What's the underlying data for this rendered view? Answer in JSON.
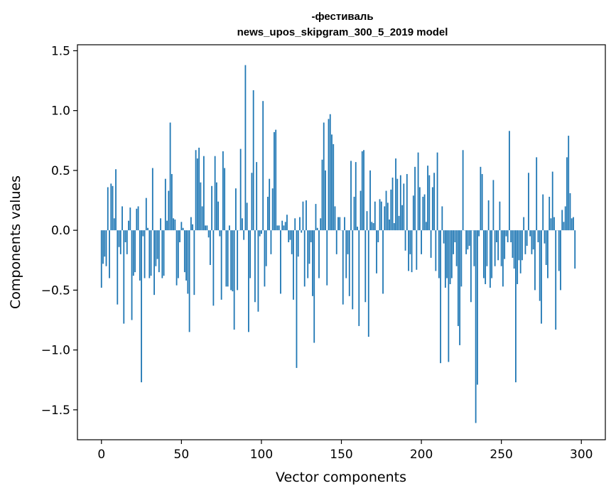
{
  "chart_data": {
    "type": "bar",
    "title_line1": "-фестиваль",
    "title_line2": "news_upos_skipgram_300_5_2019 model",
    "xlabel": "Vector components",
    "ylabel": "Components values",
    "xlim": [
      -15,
      315
    ],
    "ylim": [
      -1.75,
      1.55
    ],
    "xticks": [
      {
        "value": 0,
        "label": "0"
      },
      {
        "value": 50,
        "label": "50"
      },
      {
        "value": 100,
        "label": "100"
      },
      {
        "value": 150,
        "label": "150"
      },
      {
        "value": 200,
        "label": "200"
      },
      {
        "value": 250,
        "label": "250"
      },
      {
        "value": 300,
        "label": "300"
      }
    ],
    "yticks": [
      {
        "value": 1.5,
        "label": "1.5"
      },
      {
        "value": 1.0,
        "label": "1.0"
      },
      {
        "value": 0.5,
        "label": "0.5"
      },
      {
        "value": 0.0,
        "label": "0.0"
      },
      {
        "value": -0.5,
        "label": "−0.5"
      },
      {
        "value": -1.0,
        "label": "−1.0"
      },
      {
        "value": -1.5,
        "label": "−1.5"
      }
    ],
    "bar_color": "#1f77b4",
    "grid": false,
    "values": [
      -0.48,
      -0.28,
      -0.22,
      -0.3,
      0.36,
      -0.4,
      0.39,
      0.37,
      0.1,
      0.51,
      -0.62,
      -0.14,
      -0.2,
      0.2,
      -0.78,
      -0.1,
      -0.2,
      0.08,
      0.19,
      -0.75,
      -0.38,
      -0.35,
      0.18,
      0.2,
      -0.42,
      -1.27,
      -0.05,
      -0.4,
      0.27,
      0.02,
      -0.4,
      -0.38,
      0.52,
      -0.54,
      -0.3,
      -0.24,
      -0.35,
      0.1,
      -0.4,
      -0.38,
      0.43,
      0.08,
      0.33,
      0.9,
      0.47,
      0.1,
      0.09,
      -0.46,
      -0.4,
      -0.1,
      0.07,
      0.02,
      -0.35,
      -0.42,
      -0.53,
      -0.85,
      0.11,
      0.05,
      -0.54,
      0.67,
      0.6,
      0.69,
      0.4,
      0.2,
      0.62,
      0.04,
      0.04,
      -0.06,
      -0.29,
      0.37,
      -0.63,
      0.62,
      0.4,
      0.24,
      -0.05,
      -0.58,
      0.66,
      0.52,
      -0.47,
      -0.47,
      0.04,
      -0.5,
      -0.51,
      -0.83,
      0.35,
      -0.5,
      0.0,
      0.68,
      0.1,
      -0.08,
      1.38,
      0.23,
      -0.85,
      -0.4,
      0.48,
      1.17,
      -0.6,
      0.57,
      -0.68,
      -0.05,
      -0.03,
      1.08,
      -0.47,
      -0.3,
      0.28,
      0.43,
      -0.2,
      0.35,
      0.82,
      0.84,
      0.04,
      0.04,
      -0.53,
      0.08,
      0.04,
      0.07,
      0.13,
      -0.1,
      -0.08,
      -0.2,
      -0.58,
      0.1,
      -1.15,
      -0.22,
      0.11,
      -0.02,
      0.24,
      -0.47,
      0.25,
      -0.4,
      -0.28,
      -0.1,
      -0.55,
      -0.94,
      0.22,
      0.02,
      -0.4,
      0.1,
      0.59,
      0.9,
      0.5,
      -0.46,
      0.93,
      0.97,
      0.8,
      0.72,
      0.2,
      -0.2,
      0.11,
      0.11,
      0.0,
      -0.62,
      0.11,
      -0.4,
      -0.2,
      -0.55,
      0.58,
      -0.66,
      0.28,
      0.57,
      0.03,
      -0.8,
      0.33,
      0.66,
      0.67,
      -0.6,
      0.16,
      -0.89,
      0.5,
      0.07,
      0.06,
      0.24,
      -0.36,
      -0.1,
      0.26,
      0.24,
      -0.53,
      0.2,
      0.33,
      0.23,
      0.09,
      0.34,
      0.44,
      0.06,
      0.6,
      0.43,
      0.12,
      0.46,
      0.21,
      0.39,
      -0.17,
      0.47,
      -0.34,
      -0.2,
      -0.35,
      0.29,
      0.53,
      -0.33,
      0.65,
      0.36,
      -0.2,
      0.28,
      0.3,
      0.07,
      0.54,
      0.46,
      -0.23,
      0.36,
      0.48,
      -0.34,
      0.65,
      -0.4,
      -1.11,
      0.2,
      -0.11,
      -0.48,
      -0.4,
      -1.1,
      -0.45,
      -0.4,
      -0.2,
      -0.1,
      -0.3,
      -0.8,
      -0.96,
      -0.47,
      0.67,
      0.0,
      -0.2,
      -0.16,
      -0.13,
      -0.6,
      0.0,
      -0.3,
      -1.61,
      -1.29,
      -0.05,
      0.53,
      0.47,
      -0.4,
      -0.45,
      -0.3,
      0.25,
      -0.48,
      -0.4,
      0.42,
      -0.3,
      -0.1,
      -0.25,
      0.24,
      -0.3,
      -0.47,
      -0.24,
      -0.05,
      -0.1,
      0.83,
      -0.1,
      -0.23,
      -0.32,
      -1.27,
      -0.45,
      -0.25,
      -0.36,
      -0.25,
      0.11,
      -0.2,
      -0.13,
      0.48,
      -0.05,
      -0.2,
      -0.16,
      -0.5,
      0.61,
      -0.1,
      -0.59,
      -0.78,
      0.3,
      -0.11,
      -0.29,
      -0.4,
      0.28,
      0.1,
      0.49,
      0.11,
      -0.83,
      0.0,
      -0.34,
      -0.5,
      0.17,
      0.07,
      0.2,
      0.61,
      0.79,
      0.31,
      0.1,
      0.11,
      -0.32
    ],
    "series": [
      {
        "values_ref": "values"
      }
    ]
  }
}
